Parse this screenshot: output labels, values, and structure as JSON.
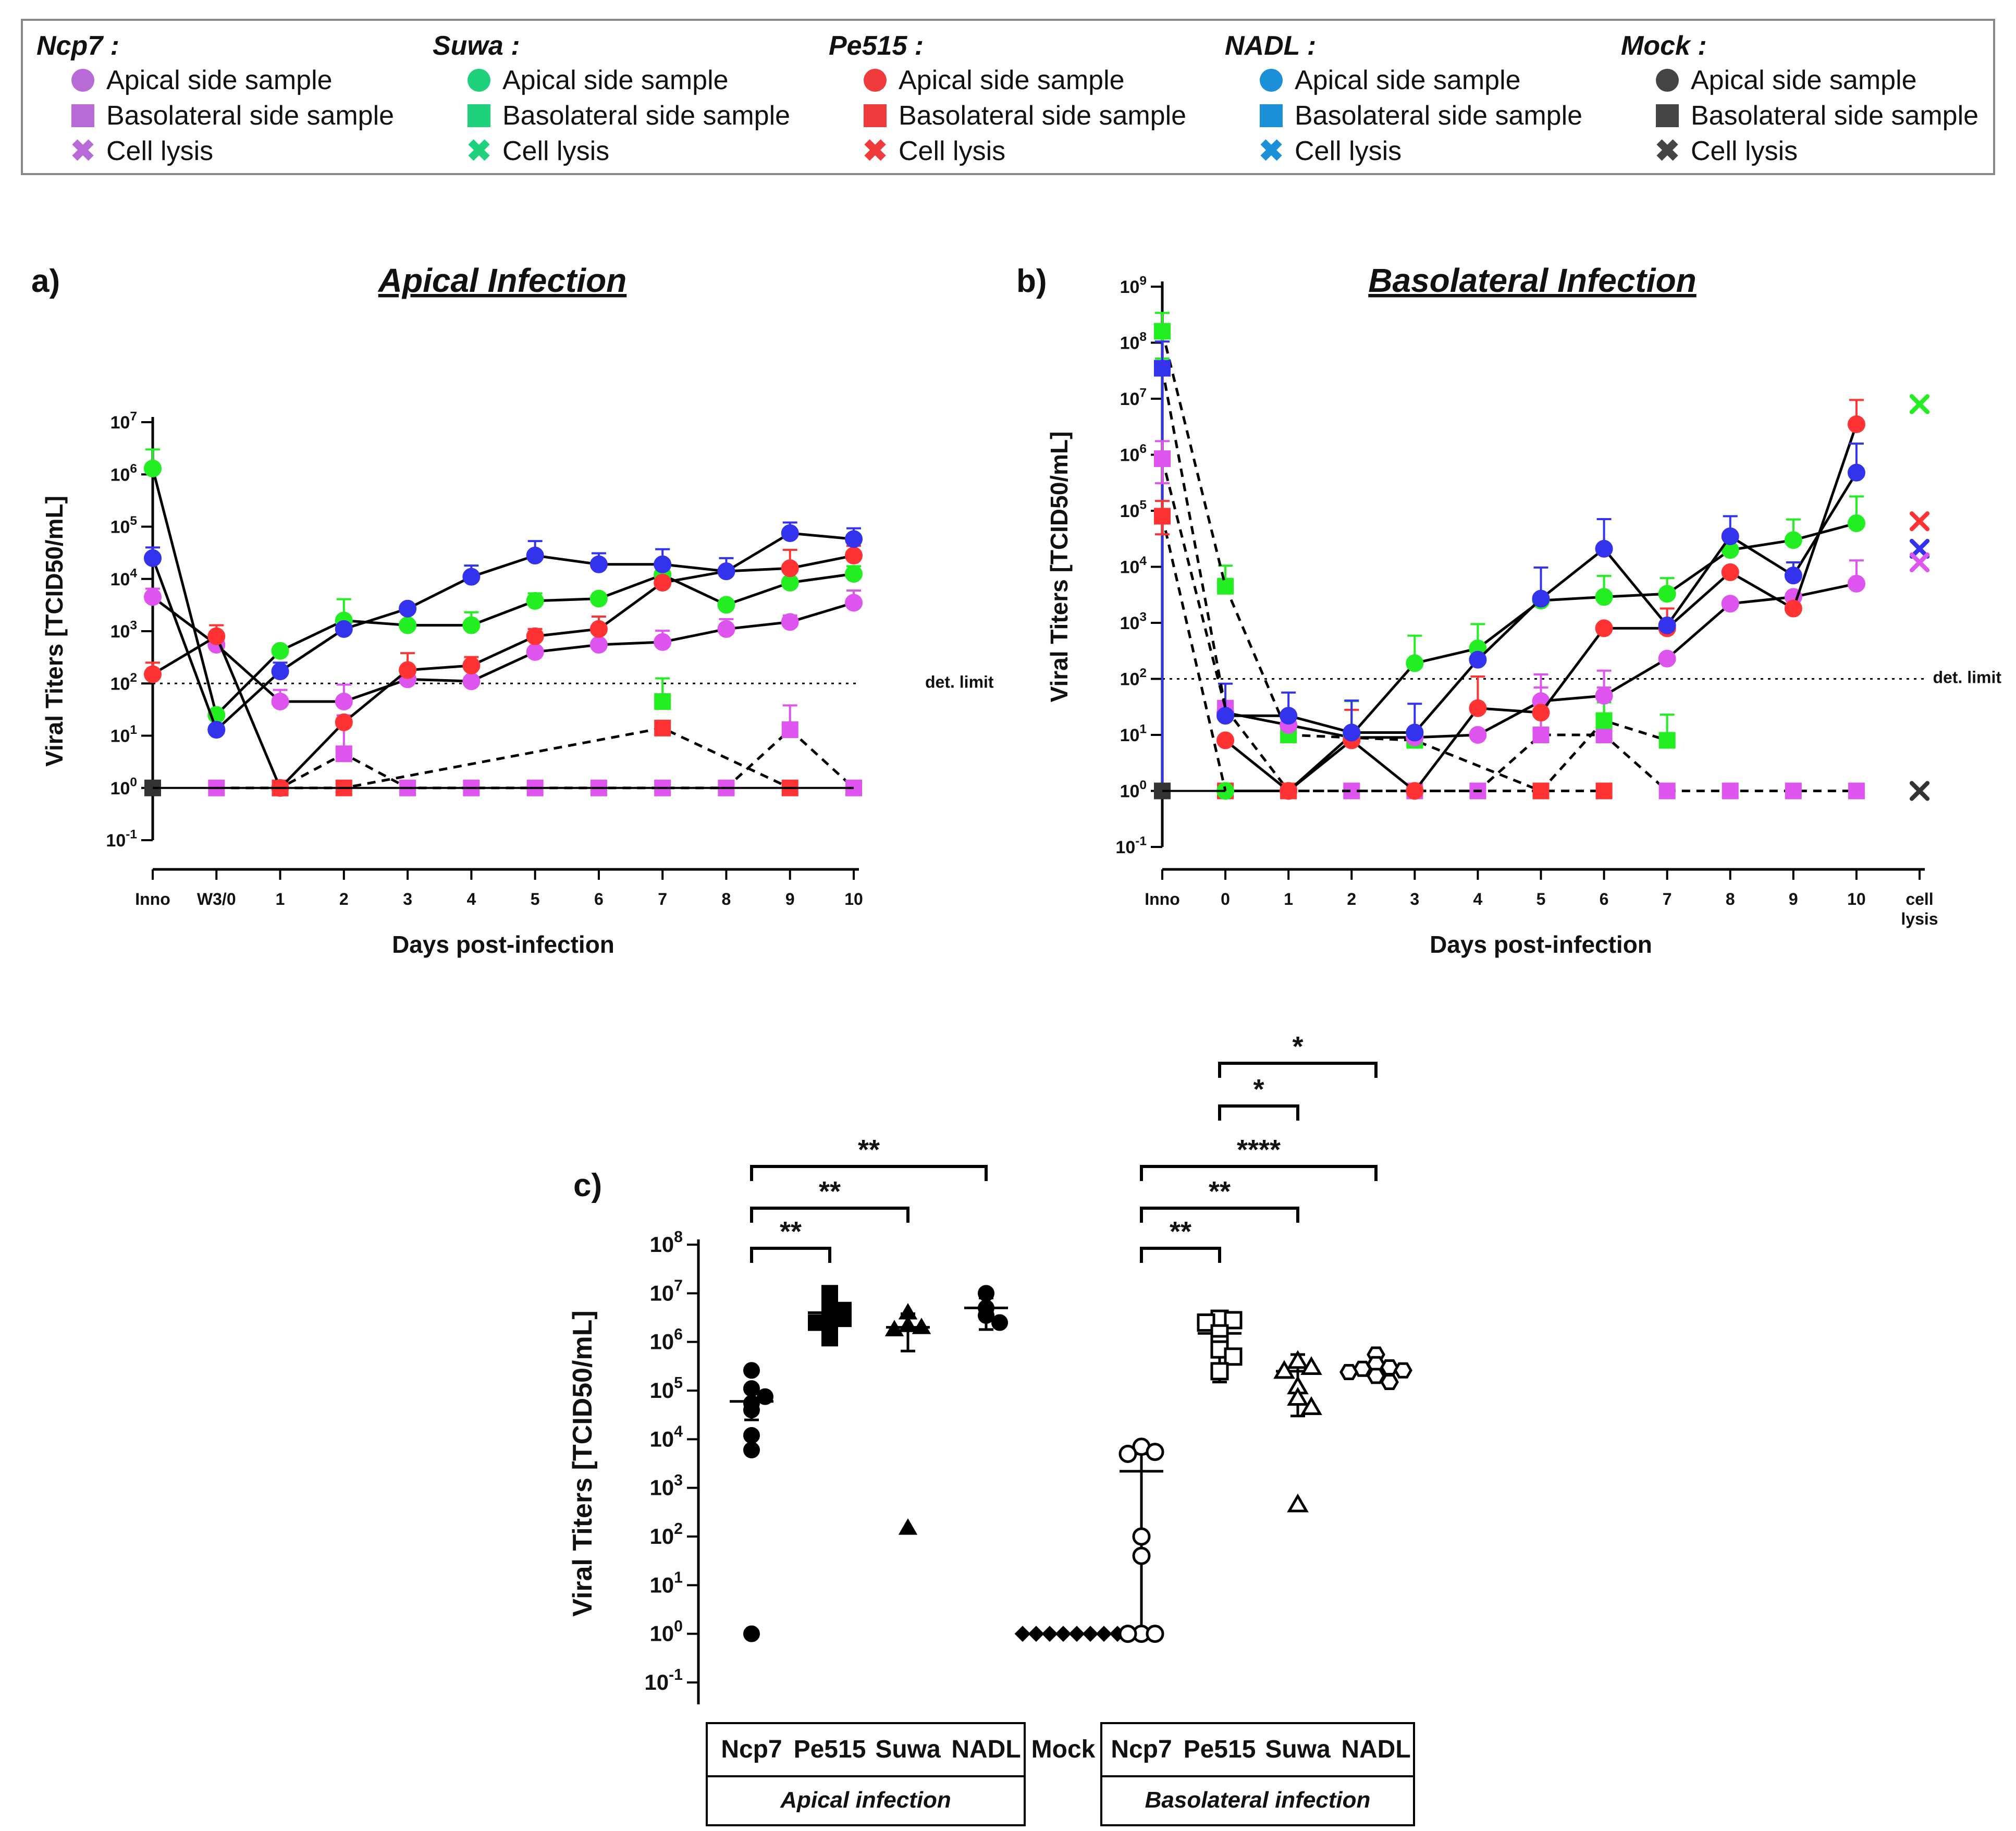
{
  "legend": {
    "groups": [
      {
        "name": "Ncp7 :",
        "color": "#b86ad6"
      },
      {
        "name": "Suwa :",
        "color": "#1fd17b"
      },
      {
        "name": "Pe515 :",
        "color": "#ef3b3b"
      },
      {
        "name": "NADL :",
        "color": "#1b8fd8"
      },
      {
        "name": "Mock :",
        "color": "#444444"
      }
    ],
    "items": [
      "Apical side sample",
      "Basolateral side sample",
      "Cell lysis"
    ]
  },
  "colors": {
    "ncp7": "#dd55ee",
    "suwa": "#22ee22",
    "pe515": "#ff3333",
    "nadl": "#3333ee",
    "mock": "#333333"
  },
  "chart_data": [
    {
      "type": "line",
      "panel": "a)",
      "title": "Apical  Infection",
      "xlabel": "Days post-infection",
      "ylabel": "Viral Titers [TCID50/mL]",
      "yscale": "log10",
      "ylim_exp": [
        -1,
        7
      ],
      "ytick_labels": [
        "10-1",
        "100",
        "101",
        "102",
        "103",
        "104",
        "105",
        "106",
        "107"
      ],
      "categories": [
        "Inno",
        "W3/0",
        "1",
        "2",
        "3",
        "4",
        "5",
        "6",
        "7",
        "8",
        "9",
        "10"
      ],
      "det_limit": {
        "value": 100,
        "label": "det. limit"
      },
      "apical_series": [
        {
          "name": "Ncp7",
          "color_key": "ncp7",
          "values": [
            4500,
            550,
            45,
            45,
            120,
            110,
            400,
            550,
            620,
            1100,
            1500,
            3500
          ],
          "err": [
            2000,
            0,
            30,
            50,
            0,
            0,
            0,
            0,
            400,
            600,
            500,
            2500
          ]
        },
        {
          "name": "Suwa",
          "color_key": "suwa",
          "values": [
            1300000,
            25,
            420,
            1600,
            1300,
            1300,
            3800,
            4200,
            12000,
            3200,
            8500,
            12500
          ],
          "err": [
            1700000,
            0,
            0,
            2500,
            0,
            1000,
            1500,
            0,
            0,
            0,
            0,
            5000
          ]
        },
        {
          "name": "Pe515",
          "color_key": "pe515",
          "values": [
            150,
            800,
            1,
            18,
            180,
            220,
            800,
            1100,
            8500,
            14000,
            16000,
            28000
          ],
          "err": [
            100,
            500,
            0,
            0,
            200,
            100,
            300,
            800,
            0,
            0,
            20000,
            15000
          ]
        },
        {
          "name": "NADL",
          "color_key": "nadl",
          "values": [
            25000,
            13,
            170,
            1100,
            2700,
            11000,
            28000,
            19000,
            19000,
            14000,
            75000,
            58000
          ],
          "err": [
            15000,
            0,
            80,
            0,
            0,
            7000,
            25000,
            12000,
            18000,
            11000,
            45000,
            35000
          ]
        }
      ],
      "basolateral_series": [
        {
          "name": "Ncp7",
          "color_key": "ncp7",
          "values": [
            null,
            1,
            1,
            4.5,
            1,
            1,
            1,
            1,
            1,
            1,
            13,
            1
          ],
          "err": [
            0,
            0,
            0,
            20,
            0,
            0,
            0,
            0,
            0,
            0,
            25,
            0
          ]
        },
        {
          "name": "Suwa",
          "color_key": "suwa",
          "values": [
            null,
            null,
            null,
            null,
            null,
            null,
            null,
            null,
            45,
            null,
            null,
            null
          ],
          "err": [
            0,
            0,
            0,
            0,
            0,
            0,
            0,
            0,
            80,
            0,
            0,
            0
          ]
        },
        {
          "name": "Pe515",
          "color_key": "pe515",
          "values": [
            null,
            null,
            1,
            1,
            null,
            null,
            null,
            null,
            14,
            null,
            1,
            null
          ],
          "err": [
            0,
            0,
            0,
            0,
            0,
            0,
            0,
            0,
            0,
            0,
            0,
            0
          ]
        },
        {
          "name": "Mock",
          "color_key": "mock",
          "values": [
            1,
            null,
            null,
            null,
            null,
            null,
            null,
            null,
            null,
            null,
            null,
            null
          ],
          "err": [
            0,
            0,
            0,
            0,
            0,
            0,
            0,
            0,
            0,
            0,
            0,
            0
          ]
        }
      ]
    },
    {
      "type": "line",
      "panel": "b)",
      "title": "Basolateral Infection",
      "xlabel": "Days post-infection",
      "ylabel": "Viral Titers [TCID50/mL]",
      "yscale": "log10",
      "ylim_exp": [
        -1,
        9
      ],
      "ytick_labels": [
        "10-1",
        "100",
        "101",
        "102",
        "103",
        "104",
        "105",
        "106",
        "107",
        "108",
        "109"
      ],
      "categories": [
        "Inno",
        "0",
        "1",
        "2",
        "3",
        "4",
        "5",
        "6",
        "7",
        "8",
        "9",
        "10",
        "cell lysis"
      ],
      "det_limit": {
        "value": 100,
        "label": "det. limit"
      },
      "inoculum": [
        {
          "name": "Suwa",
          "color_key": "suwa",
          "value": 160000000,
          "err": 180000000
        },
        {
          "name": "NADL",
          "color_key": "nadl",
          "value": 35000000,
          "err": 70000000
        },
        {
          "name": "Ncp7",
          "color_key": "ncp7",
          "value": 850000,
          "err": 900000
        },
        {
          "name": "Pe515",
          "color_key": "pe515",
          "value": 80000,
          "err": 70000
        },
        {
          "name": "Mock",
          "color_key": "mock",
          "value": 1,
          "err": 0
        }
      ],
      "apical_series": [
        {
          "name": "Ncp7",
          "color_key": "ncp7",
          "values": [
            null,
            25,
            15,
            9,
            9,
            10,
            40,
            50,
            230,
            2200,
            2900,
            5000
          ],
          "err": [
            0,
            0,
            0,
            0,
            0,
            0,
            80,
            90,
            0,
            0,
            0,
            8000
          ]
        },
        {
          "name": "Suwa",
          "color_key": "suwa",
          "values": [
            null,
            1,
            1,
            10,
            190,
            350,
            2500,
            2900,
            3300,
            20000,
            30000,
            60000
          ],
          "err": [
            0,
            0,
            0,
            30,
            400,
            600,
            0,
            4000,
            3000,
            0,
            40000,
            120000
          ]
        },
        {
          "name": "Pe515",
          "color_key": "pe515",
          "values": [
            null,
            8,
            1,
            8,
            1,
            30,
            25,
            800,
            800,
            8000,
            1800,
            3500000
          ],
          "err": [
            0,
            0,
            0,
            20,
            0,
            80,
            0,
            0,
            1000,
            0,
            0,
            6000000
          ]
        },
        {
          "name": "NADL",
          "color_key": "nadl",
          "values": [
            null,
            22,
            22,
            11,
            11,
            220,
            2700,
            21000,
            900,
            35000,
            7000,
            480000
          ],
          "err": [
            0,
            60,
            35,
            30,
            25,
            0,
            7000,
            50000,
            0,
            45000,
            5000,
            1100000
          ]
        }
      ],
      "basolateral_series": [
        {
          "name": "Ncp7",
          "color_key": "ncp7",
          "values": [
            null,
            30,
            1,
            1,
            1,
            1,
            10,
            10,
            1,
            1,
            1,
            1
          ],
          "err": [
            0,
            0,
            0,
            0,
            0,
            0,
            60,
            60,
            0,
            0,
            0,
            0
          ]
        },
        {
          "name": "Suwa",
          "color_key": "suwa",
          "values": [
            null,
            4500,
            10,
            null,
            8,
            null,
            1,
            18,
            8,
            null,
            null,
            null
          ],
          "err": [
            0,
            6000,
            0,
            0,
            0,
            0,
            0,
            20,
            15,
            0,
            0,
            0
          ]
        },
        {
          "name": "Pe515",
          "color_key": "pe515",
          "values": [
            null,
            1,
            1,
            null,
            null,
            null,
            1,
            1,
            null,
            null,
            null,
            null
          ],
          "err": [
            0,
            0,
            0,
            0,
            0,
            0,
            0,
            0,
            0,
            0,
            0,
            0
          ]
        },
        {
          "name": "NADL",
          "color_key": "nadl",
          "values": [
            null,
            null,
            null,
            null,
            null,
            null,
            null,
            null,
            null,
            null,
            null,
            null
          ],
          "err": [
            0,
            0,
            0,
            0,
            0,
            0,
            0,
            0,
            0,
            0,
            0,
            0
          ]
        }
      ],
      "dash_from_inno": [
        {
          "color_key": "suwa",
          "to": 4500
        },
        {
          "color_key": "nadl",
          "to": 30
        },
        {
          "color_key": "ncp7",
          "to": 30
        },
        {
          "color_key": "pe515",
          "to": 1
        }
      ],
      "cell_lysis": [
        {
          "name": "Suwa",
          "color_key": "suwa",
          "value": 8000000
        },
        {
          "name": "Pe515",
          "color_key": "pe515",
          "value": 65000
        },
        {
          "name": "NADL",
          "color_key": "nadl",
          "value": 21000
        },
        {
          "name": "Ncp7",
          "color_key": "ncp7",
          "value": 12000
        },
        {
          "name": "Mock",
          "color_key": "mock",
          "value": 1
        }
      ]
    },
    {
      "type": "scatter",
      "panel": "c)",
      "ylabel": "Viral Titers [TCID50/mL]",
      "yscale": "log10",
      "ylim_exp": [
        -1,
        8
      ],
      "ytick_labels": [
        "10-1",
        "100",
        "101",
        "102",
        "103",
        "104",
        "105",
        "106",
        "107",
        "108"
      ],
      "categories": [
        "Ncp7",
        "Pe515",
        "Suwa",
        "NADL",
        "Mock",
        "Ncp7",
        "Pe515",
        "Suwa",
        "NADL"
      ],
      "group_labels": [
        "Apical infection",
        "Basolateral infection"
      ],
      "groups": [
        {
          "cat": 0,
          "marker": "circle",
          "filled": true,
          "points": [
            260000,
            110000,
            75000,
            55000,
            40000,
            12000,
            6000,
            1
          ],
          "mean": 60000,
          "sd_low": 25000,
          "sd_high": 110000
        },
        {
          "cat": 1,
          "marker": "square",
          "filled": true,
          "points": [
            10000000,
            7000000,
            4500000,
            3800000,
            3000000,
            2500000,
            1800000,
            1200000
          ],
          "mean": 4000000,
          "sd_low": 1200000,
          "sd_high": 6500000
        },
        {
          "cat": 2,
          "marker": "triangle",
          "filled": true,
          "points": [
            4000000,
            2200000,
            2000000,
            1800000,
            150
          ],
          "mean": 2000000,
          "sd_low": 650000,
          "sd_high": 3800000
        },
        {
          "cat": 3,
          "marker": "circle",
          "filled": true,
          "points": [
            10000000,
            5000000,
            3500000,
            2500000
          ],
          "mean": 5000000,
          "sd_low": 1800000,
          "sd_high": 8000000
        },
        {
          "cat": 4,
          "marker": "diamond",
          "filled": true,
          "points": [
            1,
            1,
            1,
            1,
            1,
            1,
            1,
            1
          ],
          "mean": 1,
          "sd_low": 1,
          "sd_high": 1
        },
        {
          "cat": 5,
          "marker": "circle",
          "filled": false,
          "points": [
            7000,
            5500,
            5000,
            100,
            40,
            1,
            1,
            1
          ],
          "mean": 2200,
          "sd_low": 1,
          "sd_high": 5000
        },
        {
          "cat": 6,
          "marker": "square",
          "filled": false,
          "points": [
            3000000,
            2800000,
            2500000,
            1500000,
            900000,
            700000,
            500000,
            250000
          ],
          "mean": 1500000,
          "sd_low": 150000,
          "sd_high": 3200000
        },
        {
          "cat": 7,
          "marker": "triangle",
          "filled": false,
          "points": [
            400000,
            300000,
            250000,
            120000,
            70000,
            45000,
            450
          ],
          "mean": 250000,
          "sd_low": 30000,
          "sd_high": 550000
        },
        {
          "cat": 8,
          "marker": "hexagon",
          "filled": false,
          "points": [
            550000,
            350000,
            300000,
            280000,
            260000,
            240000,
            200000,
            150000
          ],
          "mean": 300000,
          "sd_low": 200000,
          "sd_high": 400000
        }
      ],
      "brackets": [
        {
          "from": 0,
          "to": 1,
          "label": "**"
        },
        {
          "from": 0,
          "to": 2,
          "label": "**"
        },
        {
          "from": 0,
          "to": 3,
          "label": "**"
        },
        {
          "from": 5,
          "to": 6,
          "label": "**"
        },
        {
          "from": 5,
          "to": 7,
          "label": "**"
        },
        {
          "from": 5,
          "to": 8,
          "label": "****"
        },
        {
          "from": 6,
          "to": 7,
          "label": "*"
        },
        {
          "from": 6,
          "to": 8,
          "label": "*"
        }
      ]
    }
  ]
}
